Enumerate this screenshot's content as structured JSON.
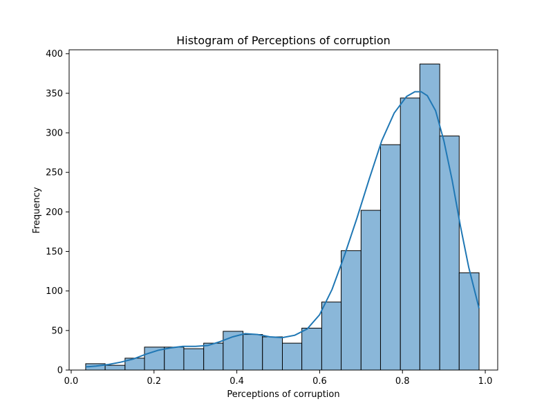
{
  "chart_data": {
    "type": "bar",
    "subtype": "histogram-with-kde",
    "title": "Histogram of Perceptions of corruption",
    "xlabel": "Perceptions of corruption",
    "ylabel": "Frequency",
    "xlim": [
      -0.005,
      1.03
    ],
    "ylim": [
      0,
      405
    ],
    "xticks": [
      0.0,
      0.2,
      0.4,
      0.6,
      0.8,
      1.0
    ],
    "xtick_labels": [
      "0.0",
      "0.2",
      "0.4",
      "0.6",
      "0.8",
      "1.0"
    ],
    "yticks": [
      0,
      50,
      100,
      150,
      200,
      250,
      300,
      350,
      400
    ],
    "ytick_labels": [
      "0",
      "50",
      "100",
      "150",
      "200",
      "250",
      "300",
      "350",
      "400"
    ],
    "grid": false,
    "bar_color": "#8ab7d9",
    "bar_edge_color": "#000000",
    "kde_color": "#1f77b4",
    "bins": [
      {
        "x0": 0.035,
        "x1": 0.082,
        "count": 8
      },
      {
        "x0": 0.082,
        "x1": 0.13,
        "count": 6
      },
      {
        "x0": 0.13,
        "x1": 0.177,
        "count": 15
      },
      {
        "x0": 0.177,
        "x1": 0.225,
        "count": 29
      },
      {
        "x0": 0.225,
        "x1": 0.272,
        "count": 29
      },
      {
        "x0": 0.272,
        "x1": 0.32,
        "count": 27
      },
      {
        "x0": 0.32,
        "x1": 0.367,
        "count": 34
      },
      {
        "x0": 0.367,
        "x1": 0.415,
        "count": 49
      },
      {
        "x0": 0.415,
        "x1": 0.462,
        "count": 45
      },
      {
        "x0": 0.462,
        "x1": 0.51,
        "count": 42
      },
      {
        "x0": 0.51,
        "x1": 0.557,
        "count": 34
      },
      {
        "x0": 0.557,
        "x1": 0.605,
        "count": 53
      },
      {
        "x0": 0.605,
        "x1": 0.652,
        "count": 86
      },
      {
        "x0": 0.652,
        "x1": 0.7,
        "count": 151
      },
      {
        "x0": 0.7,
        "x1": 0.747,
        "count": 202
      },
      {
        "x0": 0.747,
        "x1": 0.795,
        "count": 285
      },
      {
        "x0": 0.795,
        "x1": 0.842,
        "count": 344
      },
      {
        "x0": 0.842,
        "x1": 0.89,
        "count": 387
      },
      {
        "x0": 0.89,
        "x1": 0.937,
        "count": 296
      },
      {
        "x0": 0.937,
        "x1": 0.985,
        "count": 123
      }
    ],
    "kde": {
      "x": [
        0.035,
        0.06,
        0.09,
        0.12,
        0.15,
        0.18,
        0.21,
        0.24,
        0.27,
        0.3,
        0.33,
        0.36,
        0.39,
        0.42,
        0.45,
        0.48,
        0.51,
        0.54,
        0.57,
        0.6,
        0.63,
        0.66,
        0.69,
        0.72,
        0.75,
        0.78,
        0.81,
        0.83,
        0.845,
        0.86,
        0.88,
        0.9,
        0.92,
        0.94,
        0.96,
        0.985
      ],
      "y": [
        4,
        5,
        7,
        10,
        14,
        20,
        25,
        28,
        30,
        30,
        31,
        36,
        42,
        46,
        45,
        42,
        41,
        44,
        52,
        70,
        102,
        145,
        192,
        242,
        290,
        325,
        346,
        352,
        352,
        347,
        328,
        290,
        240,
        182,
        130,
        78
      ]
    }
  }
}
